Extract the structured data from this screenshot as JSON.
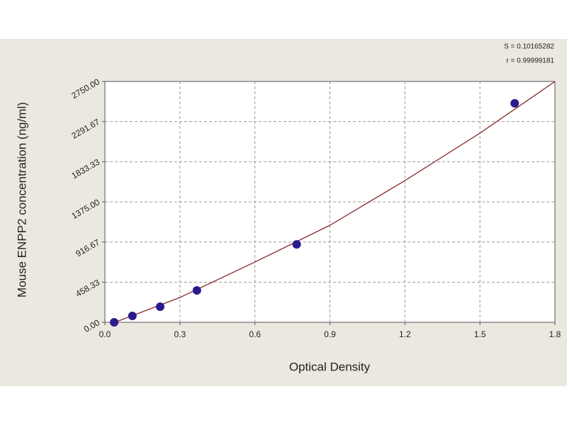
{
  "chart_data": {
    "type": "scatter",
    "xlabel": "Optical Density",
    "ylabel": "Mouse ENPP2 concentration (ng/ml)",
    "annotations": [
      "S = 0.10165282",
      "r = 0.99999181"
    ],
    "xlim": [
      0,
      1.8
    ],
    "ylim": [
      0,
      2750
    ],
    "xticks": [
      {
        "value": 0,
        "label": "0.0"
      },
      0.3,
      0.6,
      0.9,
      1.2,
      1.5,
      1.8
    ],
    "yticks": [
      {
        "value": 0,
        "label": "0.00"
      },
      {
        "value": 458.33,
        "label": "458.33"
      },
      {
        "value": 916.67,
        "label": "916.67"
      },
      {
        "value": 1375,
        "label": "1375.00"
      },
      {
        "value": 1833.33,
        "label": "1833.33"
      },
      {
        "value": 2291.67,
        "label": "2291.67"
      },
      {
        "value": 2750,
        "label": "2750.00"
      }
    ],
    "grid": true,
    "series": [
      {
        "type": "line",
        "color": "#8b2a2a",
        "x": [
          0.04,
          0.3,
          0.6,
          0.9,
          1.2,
          1.5,
          1.8
        ],
        "values": [
          0,
          283,
          688,
          1108,
          1618,
          2160,
          2750
        ]
      },
      {
        "type": "scatter",
        "color": "#2b1b8c",
        "x": [
          0.037,
          0.11,
          0.221,
          0.368,
          0.767,
          1.639
        ],
        "values": [
          0,
          73,
          178,
          364,
          890,
          2500
        ]
      }
    ]
  }
}
